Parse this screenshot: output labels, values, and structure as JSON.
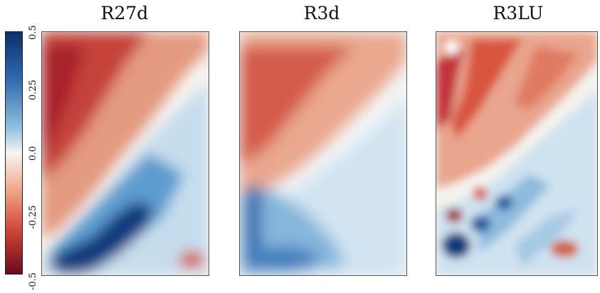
{
  "panels": [
    {
      "title": "R27d"
    },
    {
      "title": "R3d"
    },
    {
      "title": "R3LU"
    }
  ],
  "chart_data": {
    "type": "heatmap",
    "colormap": "diverging red-white-blue",
    "colorbar": {
      "ticks": [
        "0.5",
        "0.25",
        "0.0",
        "-0.25",
        "-0.5"
      ],
      "range": [
        -0.5,
        0.5
      ],
      "colors": {
        "high": "#0b2f6e",
        "mid": "#f7f5f2",
        "low": "#6b0a1a"
      }
    },
    "panels": [
      {
        "title": "R27d",
        "upper_left_sign": "negative",
        "lower_right_sign": "positive",
        "min_approx": -0.45,
        "max_approx": 0.5
      },
      {
        "title": "R3d",
        "upper_left_sign": "negative",
        "lower_right_sign": "positive",
        "min_approx": -0.3,
        "max_approx": 0.35
      },
      {
        "title": "R3LU",
        "upper_left_sign": "negative",
        "lower_right_sign": "positive",
        "min_approx": -0.45,
        "max_approx": 0.5
      }
    ]
  }
}
